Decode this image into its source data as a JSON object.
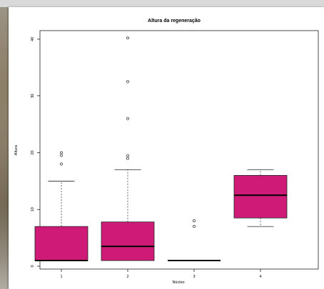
{
  "window": {
    "background": "#ffffff"
  },
  "chart_data": {
    "type": "box",
    "title": "Altura da regeneração",
    "xlabel": "Núcleo",
    "ylabel": "Altura",
    "categories": [
      "1",
      "2",
      "3",
      "4"
    ],
    "yticks": [
      0,
      10,
      20,
      30,
      40
    ],
    "ylim": [
      -0.5,
      41.5
    ],
    "box_color": "#d01a78",
    "box_outline": "#222222",
    "grid": false,
    "boxes": [
      {
        "name": "1",
        "min": 1.0,
        "q1": 1.0,
        "median": 1.0,
        "q3": 7.0,
        "max": 15.0,
        "outliers": [
          18.0,
          19.5,
          20.0
        ]
      },
      {
        "name": "2",
        "min": 1.0,
        "q1": 1.0,
        "median": 3.5,
        "q3": 7.8,
        "max": 17.0,
        "outliers": [
          19.0,
          19.5,
          26.0,
          32.5,
          40.2
        ]
      },
      {
        "name": "3",
        "min": 1.0,
        "q1": 1.0,
        "median": 1.0,
        "q3": 1.0,
        "max": 1.0,
        "outliers": [
          7.0,
          8.0
        ]
      },
      {
        "name": "4",
        "min": 7.0,
        "q1": 8.5,
        "median": 12.5,
        "q3": 16.0,
        "max": 17.0,
        "outliers": []
      }
    ]
  }
}
